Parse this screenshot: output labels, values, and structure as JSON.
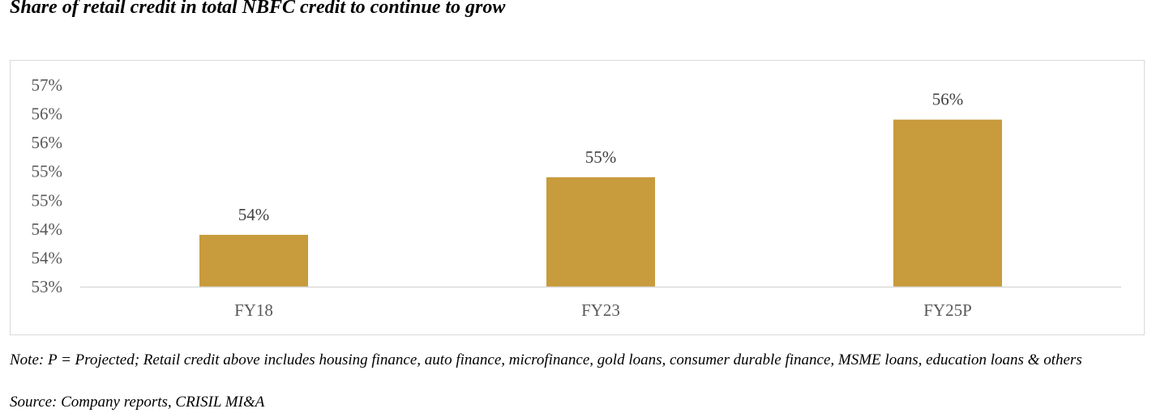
{
  "title": "Share of retail credit in total NBFC credit to continue to grow",
  "chart_data": {
    "type": "bar",
    "title": "",
    "xlabel": "",
    "ylabel": "",
    "categories": [
      "FY18",
      "FY23",
      "FY25P"
    ],
    "values": [
      53.9,
      54.9,
      55.9
    ],
    "data_labels": [
      "54%",
      "55%",
      "56%"
    ],
    "ylim": [
      53.0,
      56.5
    ],
    "y_ticks": [
      53.0,
      53.5,
      54.0,
      54.5,
      55.0,
      55.5,
      56.0,
      56.5
    ],
    "y_tick_labels": [
      "53%",
      "54%",
      "54%",
      "55%",
      "55%",
      "56%",
      "56%",
      "57%"
    ],
    "bar_color": "#C89B3C",
    "grid": false,
    "legend": "none"
  },
  "note": "Note: P = Projected; Retail credit above includes housing finance, auto finance, microfinance, gold loans, consumer durable finance, MSME loans, education loans & others",
  "source": "Source: Company reports, CRISIL MI&A"
}
